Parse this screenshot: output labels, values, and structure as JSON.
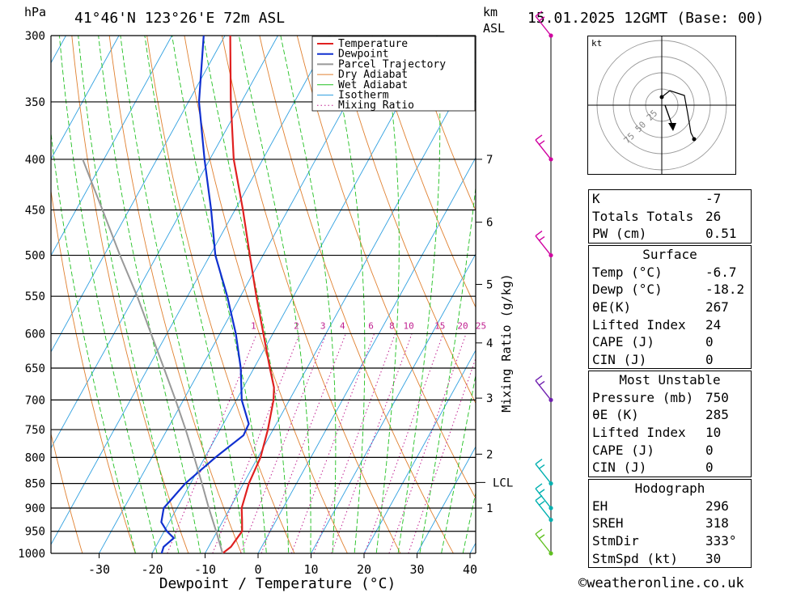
{
  "header": {
    "hpa_unit": "hPa",
    "location": "41°46'N 123°26'E 72m ASL",
    "km_unit": "km",
    "asl_unit": "ASL",
    "datetime": "15.01.2025 12GMT (Base: 00)"
  },
  "chart_data": {
    "type": "skew-t",
    "xlabel": "Dewpoint / Temperature (°C)",
    "ylabel_left": "hPa",
    "ylabel_right": "Mixing Ratio (g/kg)",
    "pressure_levels": [
      300,
      350,
      400,
      450,
      500,
      550,
      600,
      650,
      700,
      750,
      800,
      850,
      900,
      950,
      1000
    ],
    "x_ticks": [
      -30,
      -20,
      -10,
      0,
      10,
      20,
      30,
      40
    ],
    "ylim": [
      1000,
      300
    ],
    "km_ticks": [
      {
        "label": "7",
        "p": 400
      },
      {
        "label": "6",
        "p": 463
      },
      {
        "label": "5",
        "p": 535
      },
      {
        "label": "4",
        "p": 613
      },
      {
        "label": "3",
        "p": 697
      },
      {
        "label": "2",
        "p": 794
      },
      {
        "label": "1",
        "p": 900
      }
    ],
    "lcl": {
      "label": "LCL",
      "p": 848
    },
    "mixing_ratio_labels": [
      "1",
      "2",
      "3",
      "4",
      "6",
      "8",
      "10",
      "15",
      "20",
      "25"
    ],
    "legend": [
      "Temperature",
      "Dewpoint",
      "Parcel Trajectory",
      "Dry Adiabat",
      "Wet Adiabat",
      "Isotherm",
      "Mixing Ratio"
    ],
    "legend_position": "top-right",
    "series": [
      {
        "name": "Temperature",
        "color": "#e02020",
        "points": [
          [
            1000,
            -6.7
          ],
          [
            985,
            -5.8
          ],
          [
            950,
            -5.3
          ],
          [
            925,
            -6.5
          ],
          [
            900,
            -7.8
          ],
          [
            850,
            -9.0
          ],
          [
            800,
            -9.5
          ],
          [
            750,
            -11.0
          ],
          [
            700,
            -13.0
          ],
          [
            680,
            -14.2
          ],
          [
            650,
            -17.0
          ],
          [
            600,
            -21.8
          ],
          [
            550,
            -27.0
          ],
          [
            500,
            -32.5
          ],
          [
            450,
            -38.5
          ],
          [
            400,
            -45.5
          ],
          [
            350,
            -52.0
          ],
          [
            300,
            -59.0
          ]
        ]
      },
      {
        "name": "Dewpoint",
        "color": "#1030d0",
        "points": [
          [
            1000,
            -18.2
          ],
          [
            985,
            -18.5
          ],
          [
            965,
            -17.5
          ],
          [
            950,
            -19.5
          ],
          [
            930,
            -21.5
          ],
          [
            900,
            -22.5
          ],
          [
            850,
            -21.0
          ],
          [
            800,
            -18.0
          ],
          [
            760,
            -15.0
          ],
          [
            740,
            -15.2
          ],
          [
            700,
            -19.0
          ],
          [
            650,
            -22.5
          ],
          [
            600,
            -27.0
          ],
          [
            550,
            -32.5
          ],
          [
            500,
            -39.0
          ],
          [
            450,
            -44.5
          ],
          [
            400,
            -51.0
          ],
          [
            350,
            -58.0
          ],
          [
            300,
            -64.0
          ]
        ]
      },
      {
        "name": "Parcel Trajectory",
        "color": "#999999",
        "points": [
          [
            1000,
            -6.7
          ],
          [
            950,
            -10.2
          ],
          [
            900,
            -14.0
          ],
          [
            848,
            -18.0
          ],
          [
            800,
            -22.0
          ],
          [
            750,
            -26.5
          ],
          [
            700,
            -31.5
          ],
          [
            650,
            -37.0
          ],
          [
            600,
            -43.0
          ],
          [
            550,
            -49.5
          ],
          [
            500,
            -57.0
          ],
          [
            450,
            -65.0
          ],
          [
            400,
            -74.0
          ]
        ]
      }
    ],
    "wind_barbs": [
      {
        "p": 300,
        "color": "#d000a0"
      },
      {
        "p": 400,
        "color": "#d000a0"
      },
      {
        "p": 500,
        "color": "#d000a0"
      },
      {
        "p": 700,
        "color": "#7020b0"
      },
      {
        "p": 850,
        "color": "#00b0b0"
      },
      {
        "p": 900,
        "color": "#00b0b0"
      },
      {
        "p": 925,
        "color": "#00b0b0"
      },
      {
        "p": 1000,
        "color": "#60c020"
      }
    ],
    "hodograph": {
      "unit": "kt",
      "ring_labels": [
        "25",
        "50",
        "75"
      ]
    }
  },
  "indices": {
    "top": [
      {
        "label": "K",
        "value": "-7"
      },
      {
        "label": "Totals Totals",
        "value": "26"
      },
      {
        "label": "PW (cm)",
        "value": "0.51"
      }
    ],
    "surface": {
      "title": "Surface",
      "rows": [
        {
          "label": "Temp (°C)",
          "value": "-6.7"
        },
        {
          "label": "Dewp (°C)",
          "value": "-18.2"
        },
        {
          "label": "θE(K)",
          "value": "267"
        },
        {
          "label": "Lifted Index",
          "value": "24"
        },
        {
          "label": "CAPE (J)",
          "value": "0"
        },
        {
          "label": "CIN (J)",
          "value": "0"
        }
      ]
    },
    "most_unstable": {
      "title": "Most Unstable",
      "rows": [
        {
          "label": "Pressure (mb)",
          "value": "750"
        },
        {
          "label": "θE (K)",
          "value": "285"
        },
        {
          "label": "Lifted Index",
          "value": "10"
        },
        {
          "label": "CAPE (J)",
          "value": "0"
        },
        {
          "label": "CIN (J)",
          "value": "0"
        }
      ]
    },
    "hodograph": {
      "title": "Hodograph",
      "rows": [
        {
          "label": "EH",
          "value": "296"
        },
        {
          "label": "SREH",
          "value": "318"
        },
        {
          "label": "StmDir",
          "value": "333°"
        },
        {
          "label": "StmSpd (kt)",
          "value": "30"
        }
      ]
    }
  },
  "footer": {
    "copyright": "©weatheronline.co.uk"
  }
}
